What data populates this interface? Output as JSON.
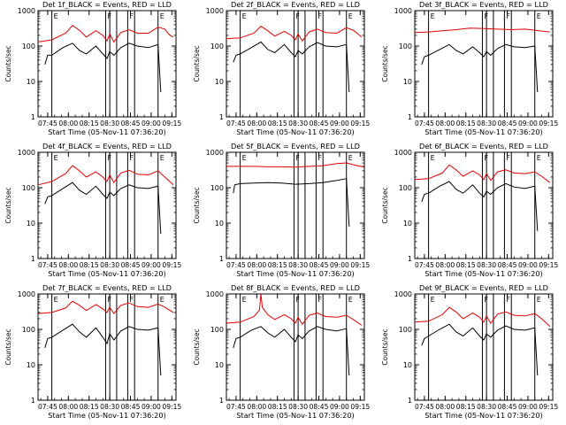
{
  "chart_data": {
    "type": "line",
    "grid_rows": 3,
    "grid_cols": 3,
    "x_tick_labels": [
      "07:45",
      "08:00",
      "08:15",
      "08:30",
      "08:45",
      "09:00",
      "09:15"
    ],
    "x_ticks_min": [
      7,
      22,
      37,
      52,
      67,
      82,
      97
    ],
    "xlim_min": [
      0,
      100
    ],
    "xlabel": "Start Time (05-Nov-11 07:36:20)",
    "ylabel": "Counts/sec",
    "yscale": "log",
    "ylim": [
      1,
      1000
    ],
    "y_tick_labels": [
      "1",
      "10",
      "100",
      "1000"
    ],
    "y_ticks": [
      1,
      10,
      100,
      1000
    ],
    "series_colors": {
      "events": "#000000",
      "lld": "#e00000"
    },
    "markers_min": [
      {
        "x": 10,
        "label": "E"
      },
      {
        "x": 49,
        "label": "F"
      },
      {
        "x": 52,
        "label": ""
      },
      {
        "x": 57,
        "label": ""
      },
      {
        "x": 65,
        "label": "F"
      },
      {
        "x": 70,
        "label": ""
      },
      {
        "x": 87,
        "label": "E"
      }
    ],
    "panels": [
      {
        "title": "Det 1f_BLACK = Events, RED = LLD",
        "lld": {
          "x": [
            0,
            10,
            20,
            25,
            30,
            35,
            42,
            47,
            50,
            52,
            55,
            60,
            66,
            72,
            80,
            87,
            92,
            95,
            98
          ],
          "y": [
            130,
            150,
            230,
            380,
            280,
            180,
            270,
            200,
            140,
            220,
            130,
            240,
            290,
            230,
            230,
            340,
            300,
            210,
            180
          ]
        },
        "events": {
          "x": [
            5,
            7,
            10,
            18,
            25,
            30,
            35,
            42,
            47,
            50,
            52,
            55,
            60,
            66,
            72,
            80,
            87,
            89
          ],
          "y": [
            30,
            55,
            55,
            90,
            120,
            75,
            60,
            100,
            60,
            45,
            70,
            55,
            90,
            120,
            100,
            90,
            110,
            5
          ]
        }
      },
      {
        "title": "Det 2f_BLACK = Events, RED = LLD",
        "lld": {
          "x": [
            0,
            10,
            20,
            25,
            30,
            35,
            42,
            47,
            50,
            52,
            55,
            60,
            66,
            72,
            80,
            87,
            92,
            98
          ],
          "y": [
            160,
            170,
            230,
            360,
            270,
            190,
            260,
            200,
            150,
            220,
            140,
            250,
            300,
            240,
            230,
            330,
            280,
            180
          ]
        },
        "events": {
          "x": [
            5,
            7,
            10,
            18,
            25,
            30,
            35,
            42,
            47,
            50,
            52,
            55,
            60,
            66,
            72,
            80,
            87,
            89
          ],
          "y": [
            35,
            55,
            60,
            90,
            130,
            80,
            65,
            110,
            65,
            50,
            75,
            60,
            95,
            125,
            100,
            95,
            110,
            5
          ]
        }
      },
      {
        "title": "Det 3f_BLACK = Events, RED = LLD",
        "lld": {
          "x": [
            0,
            10,
            20,
            30,
            40,
            50,
            60,
            70,
            80,
            90,
            98
          ],
          "y": [
            240,
            250,
            270,
            290,
            320,
            310,
            300,
            290,
            300,
            270,
            250
          ]
        },
        "events": {
          "x": [
            5,
            7,
            10,
            18,
            25,
            30,
            35,
            42,
            47,
            50,
            52,
            55,
            60,
            66,
            72,
            80,
            87,
            89
          ],
          "y": [
            30,
            50,
            55,
            80,
            110,
            75,
            60,
            95,
            65,
            50,
            70,
            55,
            85,
            110,
            95,
            90,
            100,
            5
          ]
        }
      },
      {
        "title": "Det 4f_BLACK = Events, RED = LLD",
        "lld": {
          "x": [
            0,
            10,
            20,
            25,
            30,
            35,
            42,
            47,
            50,
            52,
            55,
            60,
            66,
            72,
            80,
            87,
            92,
            98
          ],
          "y": [
            120,
            150,
            250,
            420,
            300,
            200,
            280,
            200,
            150,
            230,
            140,
            260,
            310,
            240,
            230,
            300,
            200,
            120
          ]
        },
        "events": {
          "x": [
            5,
            7,
            10,
            18,
            25,
            30,
            35,
            42,
            47,
            50,
            52,
            55,
            60,
            66,
            72,
            80,
            87,
            89
          ],
          "y": [
            35,
            55,
            60,
            95,
            140,
            85,
            65,
            110,
            65,
            50,
            75,
            60,
            95,
            120,
            100,
            95,
            110,
            5
          ]
        }
      },
      {
        "title": "Det 5f_BLACK = Events, RED = LLD",
        "lld": {
          "x": [
            0,
            10,
            20,
            30,
            40,
            50,
            60,
            70,
            80,
            87,
            95,
            100
          ],
          "y": [
            400,
            400,
            400,
            390,
            390,
            380,
            400,
            420,
            480,
            500,
            420,
            380
          ]
        },
        "events": {
          "x": [
            5,
            6,
            10,
            20,
            30,
            40,
            50,
            60,
            70,
            80,
            87,
            89
          ],
          "y": [
            70,
            120,
            130,
            135,
            140,
            135,
            125,
            130,
            140,
            160,
            180,
            8
          ]
        }
      },
      {
        "title": "Det 6f_BLACK = Events, RED = LLD",
        "lld": {
          "x": [
            0,
            10,
            20,
            25,
            30,
            35,
            42,
            47,
            50,
            52,
            55,
            60,
            66,
            72,
            80,
            87,
            92,
            98
          ],
          "y": [
            170,
            180,
            260,
            440,
            320,
            210,
            300,
            230,
            170,
            250,
            160,
            280,
            320,
            260,
            250,
            280,
            210,
            140
          ]
        },
        "events": {
          "x": [
            5,
            7,
            10,
            18,
            25,
            30,
            35,
            42,
            47,
            50,
            52,
            55,
            60,
            66,
            72,
            80,
            87,
            89
          ],
          "y": [
            40,
            65,
            70,
            110,
            150,
            90,
            70,
            120,
            70,
            55,
            80,
            65,
            100,
            130,
            105,
            95,
            110,
            6
          ]
        }
      },
      {
        "title": "Det 7f_BLACK = Events, RED = LLD",
        "lld": {
          "x": [
            0,
            10,
            20,
            25,
            30,
            35,
            42,
            47,
            50,
            52,
            55,
            60,
            66,
            72,
            80,
            87,
            92,
            98
          ],
          "y": [
            280,
            300,
            400,
            620,
            480,
            340,
            500,
            380,
            300,
            420,
            280,
            480,
            560,
            440,
            420,
            520,
            420,
            300
          ]
        },
        "events": {
          "x": [
            5,
            7,
            10,
            18,
            25,
            30,
            35,
            42,
            47,
            50,
            52,
            55,
            60,
            66,
            72,
            80,
            87,
            89
          ],
          "y": [
            30,
            55,
            60,
            95,
            140,
            85,
            60,
            110,
            60,
            40,
            75,
            50,
            90,
            120,
            100,
            95,
            110,
            5
          ]
        }
      },
      {
        "title": "Det 8f_BLACK = Events, RED = LLD",
        "lld": {
          "x": [
            0,
            10,
            20,
            24,
            25,
            26,
            30,
            35,
            42,
            47,
            50,
            52,
            55,
            60,
            66,
            72,
            80,
            87,
            92,
            98
          ],
          "y": [
            150,
            160,
            230,
            350,
            1000,
            420,
            260,
            190,
            260,
            200,
            150,
            220,
            140,
            250,
            290,
            230,
            220,
            250,
            190,
            130
          ]
        },
        "events": {
          "x": [
            5,
            7,
            10,
            18,
            25,
            30,
            35,
            42,
            47,
            50,
            52,
            55,
            60,
            66,
            72,
            80,
            87,
            89
          ],
          "y": [
            30,
            55,
            60,
            95,
            120,
            80,
            60,
            100,
            60,
            45,
            70,
            55,
            90,
            120,
            100,
            90,
            105,
            5
          ]
        }
      },
      {
        "title": "Det 9f_BLACK = Events, RED = LLD",
        "lld": {
          "x": [
            0,
            10,
            20,
            25,
            30,
            35,
            42,
            47,
            50,
            52,
            55,
            60,
            66,
            72,
            80,
            87,
            92,
            98
          ],
          "y": [
            160,
            170,
            260,
            420,
            310,
            200,
            290,
            220,
            160,
            240,
            150,
            270,
            310,
            250,
            240,
            280,
            200,
            120
          ]
        },
        "events": {
          "x": [
            5,
            7,
            10,
            18,
            25,
            30,
            35,
            42,
            47,
            50,
            52,
            55,
            60,
            66,
            72,
            80,
            87,
            89
          ],
          "y": [
            35,
            55,
            65,
            100,
            140,
            85,
            65,
            110,
            65,
            50,
            75,
            60,
            95,
            125,
            100,
            95,
            110,
            5
          ]
        }
      }
    ]
  }
}
